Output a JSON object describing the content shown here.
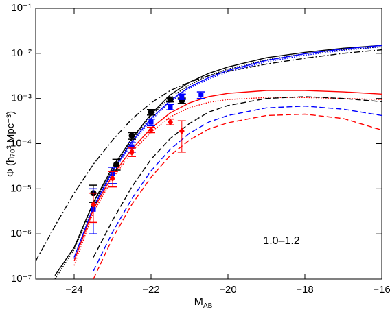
{
  "chart_data": {
    "type": "line",
    "x_label": "M",
    "x_label_sub": "AB",
    "y_label": "Φ (h₇₀³ Mpc⁻³)",
    "annotation": "1.0–1.2",
    "xlim": [
      -25,
      -16
    ],
    "ylim": [
      1e-07,
      0.1
    ],
    "ylog": true,
    "xticks": [
      {
        "value": -24,
        "label": "−24"
      },
      {
        "value": -22,
        "label": "−22"
      },
      {
        "value": -20,
        "label": "−20"
      },
      {
        "value": -18,
        "label": "−18"
      },
      {
        "value": -16,
        "label": "−16"
      }
    ],
    "yticks": [
      {
        "value": 1e-07,
        "label": "10⁻⁷"
      },
      {
        "value": 1e-06,
        "label": "10⁻⁶"
      },
      {
        "value": 1e-05,
        "label": "10⁻⁵"
      },
      {
        "value": 0.0001,
        "label": "10⁻⁴"
      },
      {
        "value": 0.001,
        "label": "10⁻³"
      },
      {
        "value": 0.01,
        "label": "10⁻²"
      },
      {
        "value": 0.1,
        "label": "10⁻¹"
      }
    ],
    "x": [
      -25,
      -24.5,
      -24,
      -23.5,
      -23,
      -22.5,
      -22,
      -21.5,
      -21,
      -20.5,
      -20,
      -19,
      -18,
      -17,
      -16
    ],
    "series": [
      {
        "color": "#000000",
        "dash": "solid",
        "values": [
          null,
          1.2e-07,
          5e-07,
          5e-06,
          3e-05,
          0.00013,
          0.00045,
          0.0012,
          0.0023,
          0.0036,
          0.005,
          0.008,
          0.0105,
          0.013,
          0.015
        ]
      },
      {
        "color": "#000000",
        "dash": "dotted",
        "values": [
          null,
          1e-07,
          4.5e-07,
          4.5e-06,
          2.7e-05,
          0.00012,
          0.00042,
          0.00105,
          0.002,
          0.0032,
          0.0045,
          0.0072,
          0.0098,
          0.012,
          0.014
        ]
      },
      {
        "color": "#000000",
        "dash": "dashdot",
        "values": [
          2.5e-07,
          1.5e-06,
          8e-06,
          3.5e-05,
          0.00012,
          0.00035,
          0.0008,
          0.0015,
          0.0023,
          0.0032,
          0.004,
          0.0058,
          0.0078,
          0.01,
          0.012
        ]
      },
      {
        "color": "#0000ff",
        "dash": "solid",
        "values": [
          null,
          null,
          3e-07,
          4e-06,
          2.5e-05,
          0.00011,
          0.00036,
          0.0009,
          0.0018,
          0.0029,
          0.0042,
          0.007,
          0.0098,
          0.0125,
          0.015
        ]
      },
      {
        "color": "#0000ff",
        "dash": "dotted",
        "values": [
          null,
          null,
          2.8e-07,
          3.7e-06,
          2.3e-05,
          0.0001,
          0.00033,
          0.00084,
          0.0017,
          0.0027,
          0.0039,
          0.0065,
          0.0091,
          0.0116,
          0.014
        ]
      },
      {
        "color": "#ff0000",
        "dash": "solid",
        "values": [
          null,
          null,
          2.5e-07,
          3.5e-06,
          2e-05,
          7.5e-05,
          0.00022,
          0.00048,
          0.0008,
          0.0011,
          0.0013,
          0.0015,
          0.0015,
          0.0014,
          0.00125
        ]
      },
      {
        "color": "#ff0000",
        "dash": "dotted",
        "values": [
          null,
          null,
          2e-07,
          3e-06,
          1.7e-05,
          6.5e-05,
          0.00018,
          0.00039,
          0.00063,
          0.00082,
          0.00095,
          0.00105,
          0.00105,
          0.001,
          0.00095
        ]
      },
      {
        "color": "#000000",
        "dash": "dashed",
        "values": [
          null,
          null,
          null,
          3e-07,
          2e-06,
          1.1e-05,
          4.5e-05,
          0.00013,
          0.00028,
          0.0005,
          0.0007,
          0.001,
          0.0011,
          0.001,
          0.00085
        ]
      },
      {
        "color": "#0000ff",
        "dash": "dashed",
        "values": [
          null,
          null,
          null,
          1.5e-07,
          1.1e-06,
          6e-06,
          2.5e-05,
          7.5e-05,
          0.00017,
          0.0003,
          0.00042,
          0.00062,
          0.00068,
          0.00058,
          0.00042
        ]
      },
      {
        "color": "#ff0000",
        "dash": "dashed",
        "values": [
          null,
          null,
          null,
          1e-07,
          8e-07,
          4.5e-06,
          1.8e-05,
          5.5e-05,
          0.00012,
          0.00021,
          0.00029,
          0.00042,
          0.00045,
          0.00036,
          0.0002
        ]
      }
    ],
    "points": [
      {
        "color": "#000000",
        "marker": "circle",
        "x": [
          -23.5,
          -22.9,
          -22.5,
          -22,
          -21.5,
          -21.2
        ],
        "values": [
          8e-06,
          3.5e-05,
          0.00015,
          0.0005,
          0.00095,
          0.0009
        ],
        "lower": [
          5e-06,
          2.6e-05,
          0.000125,
          0.00043,
          0.00084,
          0.00078
        ],
        "upper": [
          1.2e-05,
          4.5e-05,
          0.000175,
          0.00057,
          0.00107,
          0.00102
        ]
      },
      {
        "color": "#0000ff",
        "marker": "square",
        "x": [
          -23.5,
          -23,
          -22.5,
          -22,
          -21.5,
          -21.2,
          -20.7
        ],
        "values": [
          3.5e-06,
          2.2e-05,
          8.5e-05,
          0.0003,
          0.00065,
          0.0011,
          0.0012
        ],
        "lower": [
          1e-06,
          1.3e-05,
          6.5e-05,
          0.00025,
          0.00056,
          0.00095,
          0.001
        ],
        "upper": [
          1e-05,
          3e-05,
          0.000105,
          0.00035,
          0.00074,
          0.00125,
          0.0014
        ]
      },
      {
        "color": "#ff0000",
        "marker": "diamond",
        "x": [
          -23.5,
          -23,
          -22.5,
          -22,
          -21.5,
          -21.2
        ],
        "values": [
          4.5e-06,
          1.7e-05,
          6.5e-05,
          0.0002,
          0.0003,
          0.00019
        ],
        "lower": [
          1.8e-06,
          1.1e-05,
          5.2e-05,
          0.000175,
          0.00026,
          6.5e-05
        ],
        "upper": [
          8e-06,
          2.4e-05,
          8e-05,
          0.00023,
          0.00035,
          0.00032
        ]
      }
    ]
  }
}
